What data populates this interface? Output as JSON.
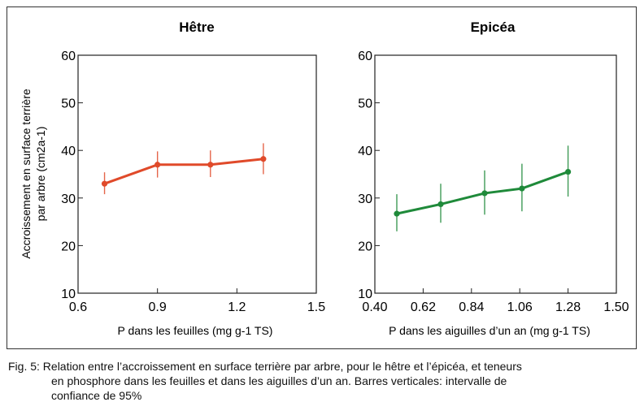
{
  "chart_data": [
    {
      "type": "line",
      "title": "Hêtre",
      "xlabel": "P dans les feuilles (mg g-1 TS)",
      "ylabel": [
        "Accroissement en surface terrière",
        "par arbre (cm2a-1)"
      ],
      "xlim": [
        0.6,
        1.5
      ],
      "ylim": [
        10,
        60
      ],
      "xticks": [
        "0.6",
        "0.9",
        "1.2",
        "1.5"
      ],
      "yticks": [
        "10",
        "20",
        "30",
        "40",
        "50",
        "60"
      ],
      "grid": false,
      "series": [
        {
          "name": "Hêtre",
          "color": "#e04a2a",
          "x": [
            0.7,
            0.9,
            1.1,
            1.3
          ],
          "y": [
            33.0,
            37.0,
            37.0,
            38.2
          ],
          "ci_low": [
            30.8,
            34.3,
            34.4,
            35.0
          ],
          "ci_high": [
            35.4,
            39.8,
            40.0,
            41.5
          ]
        }
      ]
    },
    {
      "type": "line",
      "title": "Epicéa",
      "xlabel": "P dans les aiguilles d’un an (mg g-1 TS)",
      "ylabel": "",
      "xlim": [
        0.4,
        1.5
      ],
      "ylim": [
        10,
        60
      ],
      "xticks": [
        "0.40",
        "0.62",
        "0.84",
        "1.06",
        "1.28",
        "1.50"
      ],
      "yticks": [
        "10",
        "20",
        "30",
        "40",
        "50",
        "60"
      ],
      "grid": false,
      "series": [
        {
          "name": "Epicéa",
          "color": "#1f8a3a",
          "x": [
            0.5,
            0.7,
            0.9,
            1.07,
            1.28
          ],
          "y": [
            26.7,
            28.7,
            31.0,
            32.0,
            35.5
          ],
          "ci_low": [
            23.0,
            24.8,
            26.5,
            27.2,
            30.3
          ],
          "ci_high": [
            30.8,
            33.0,
            35.8,
            37.2,
            41.0
          ]
        }
      ]
    }
  ],
  "caption": {
    "line1": "Fig. 5: Relation entre l’accroissement en surface terrière par arbre, pour le hêtre et l’épicéa, et teneurs",
    "line2": "en phosphore dans les feuilles et dans les aiguilles d’un an. Barres verticales: intervalle de",
    "line3": "confiance de 95%"
  }
}
